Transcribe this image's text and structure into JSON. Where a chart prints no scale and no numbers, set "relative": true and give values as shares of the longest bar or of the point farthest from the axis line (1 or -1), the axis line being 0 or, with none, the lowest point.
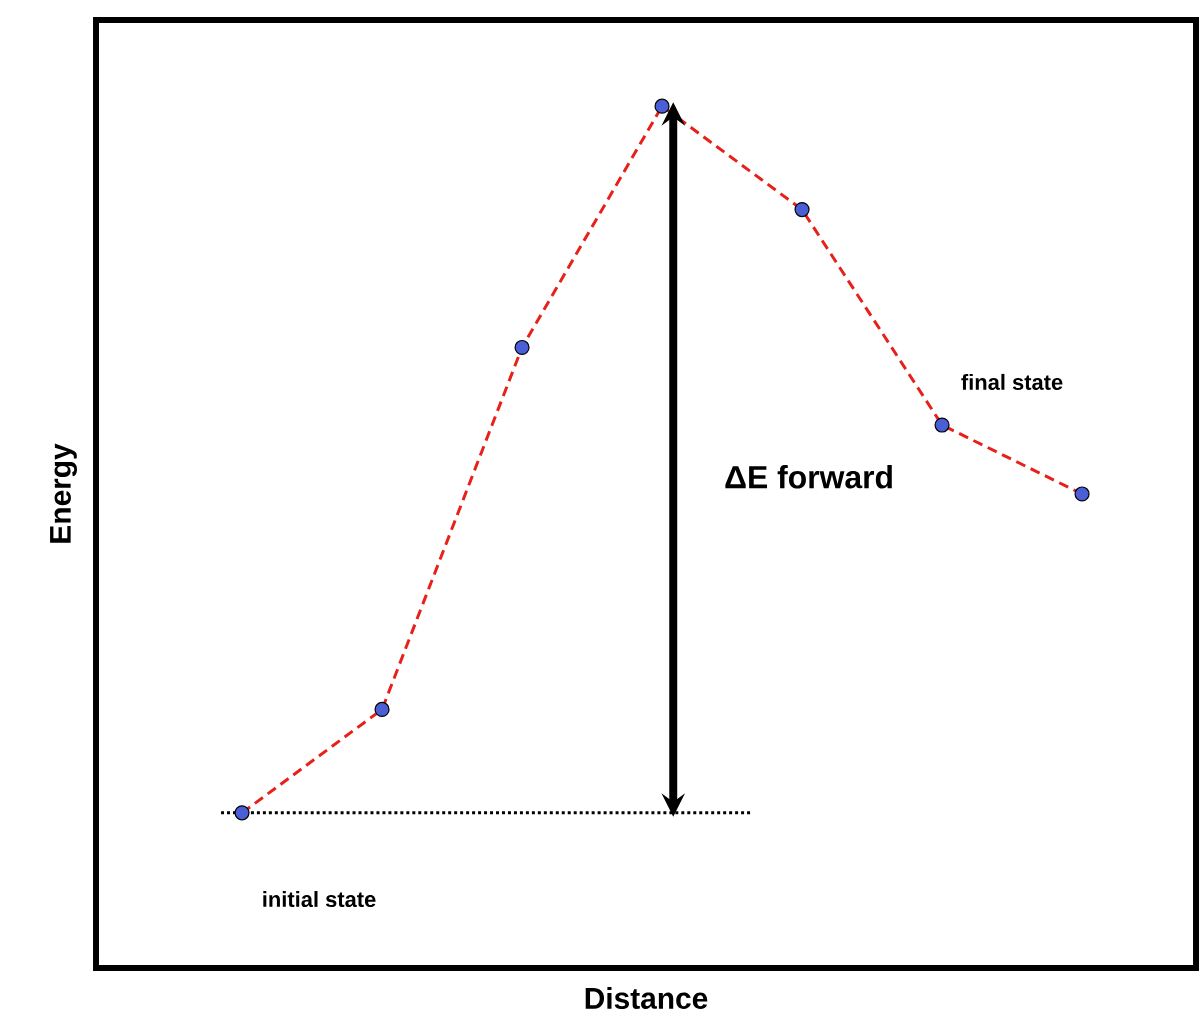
{
  "chart_data": {
    "type": "line",
    "relative": true,
    "xlabel": "Distance",
    "ylabel": "Energy",
    "categories": [
      null,
      null,
      null,
      null,
      null,
      null,
      null
    ],
    "series": [
      {
        "color": "#e8201a",
        "line_style": "dashed",
        "marker": "circle",
        "colors": [
          "#4a5fd6",
          "#4a5fd6",
          "#4a5fd6",
          "#4a5fd6",
          "#4a5fd6",
          "#4a5fd6",
          "#4a5fd6"
        ],
        "values": [
          0.18,
          0.3,
          0.72,
          1,
          0.88,
          0.63,
          0.55
        ]
      }
    ],
    "ref_lines": [
      {
        "axis": "y",
        "value": 0.18,
        "color": "#000000",
        "line_style": "dotted"
      }
    ],
    "annotations": [
      "initial state",
      "final state",
      "ΔE forward"
    ]
  }
}
